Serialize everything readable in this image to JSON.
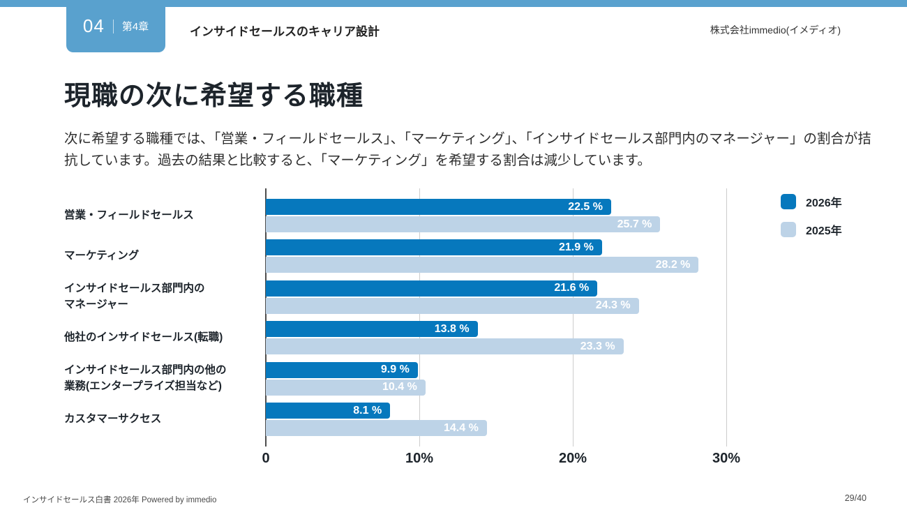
{
  "header": {
    "chapter_number": "04",
    "chapter_label": "第4章",
    "title": "インサイドセールスのキャリア設計",
    "company": "株式会社immedio(イメディオ)"
  },
  "main": {
    "title": "現職の次に希望する職種",
    "description_line1": "次に希望する職種では、「営業・フィールドセールス」、「マーケティング」、「インサイドセールス部門内のマネージャー」の割合が拮",
    "description_line2": "抗しています。過去の結果と比較すると、「マーケティング」を希望する割合は減少しています。"
  },
  "chart_data": {
    "type": "bar",
    "orientation": "horizontal",
    "categories": [
      "営業・フィールドセールス",
      "マーケティング",
      "インサイドセールス部門内の\nマネージャー",
      "他社のインサイドセールス(転職)",
      "インサイドセールス部門内の他の\n業務(エンタープライズ担当など)",
      "カスタマーサクセス"
    ],
    "series": [
      {
        "name": "2026年",
        "color": "#0678bd",
        "values": [
          22.5,
          21.9,
          21.6,
          13.8,
          9.9,
          8.1
        ]
      },
      {
        "name": "2025年",
        "color": "#bdd3e7",
        "values": [
          25.7,
          28.2,
          24.3,
          23.3,
          10.4,
          14.4
        ]
      }
    ],
    "value_suffix": " %",
    "x_ticks": [
      "0",
      "10%",
      "20%",
      "30%"
    ],
    "xlim": [
      0,
      30
    ],
    "grid": true,
    "legend_position": "top-right"
  },
  "footer": {
    "left": "インサイドセールス白書 2026年 Powered by immedio",
    "right": "29/40"
  }
}
